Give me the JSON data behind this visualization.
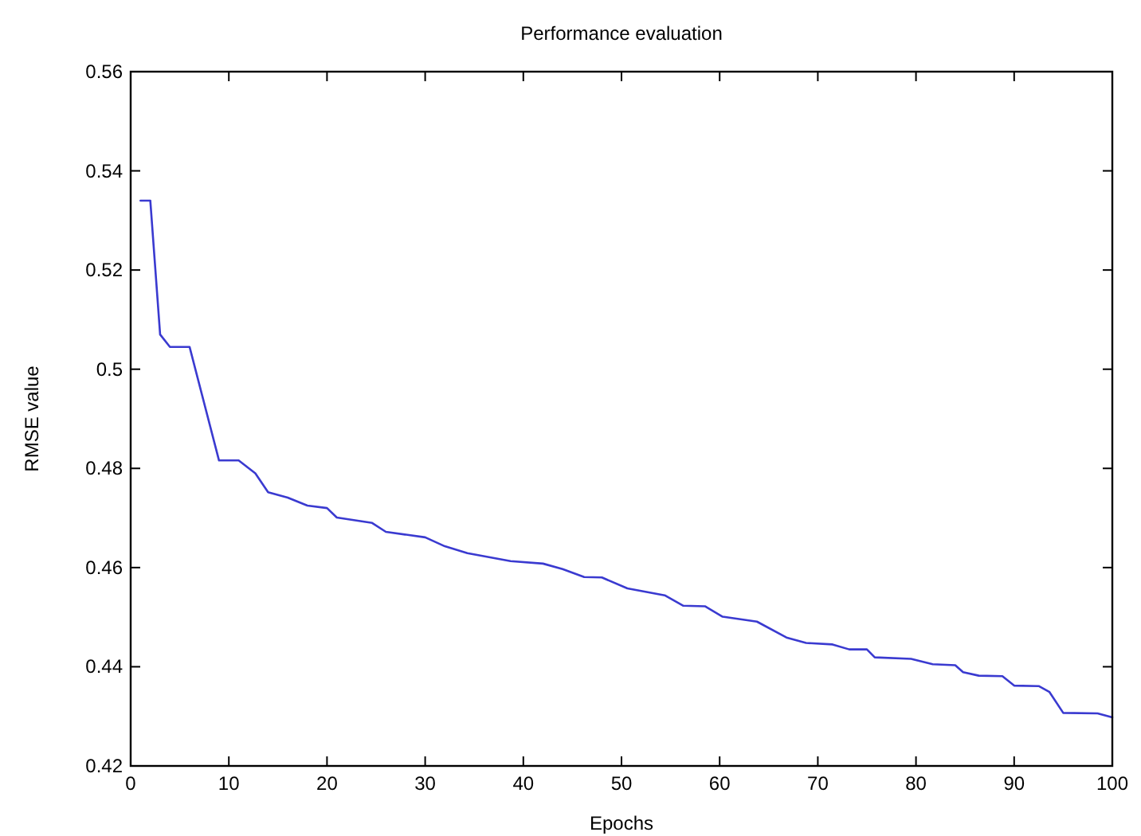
{
  "chart_data": {
    "type": "line",
    "title": "Performance evaluation",
    "xlabel": "Epochs",
    "ylabel": "RMSE value",
    "xlim": [
      0,
      100
    ],
    "xticks": [
      0,
      10,
      20,
      30,
      40,
      50,
      60,
      70,
      80,
      90,
      100
    ],
    "ylim": [
      0.42,
      0.56
    ],
    "yticks": [
      0.42,
      0.44,
      0.46,
      0.48,
      0.5,
      0.52,
      0.54,
      0.56
    ],
    "grid": false,
    "marker": "none",
    "line_style": "solid",
    "series": [
      {
        "color": "#3a3ad0",
        "x": [
          1,
          2,
          3,
          4,
          6,
          9,
          11,
          12.7,
          14,
          16,
          18,
          20,
          21,
          24.6,
          26,
          30,
          32,
          34.3,
          38.7,
          42,
          44,
          46.2,
          48,
          50.6,
          54.4,
          56.3,
          58.5,
          60.3,
          63.8,
          66.8,
          68.8,
          71.5,
          73.2,
          75,
          75.8,
          79.5,
          81.7,
          84,
          84.8,
          86.4,
          88.8,
          90,
          92.5,
          93.6,
          95,
          98.5,
          100
        ],
        "values": [
          0.534,
          0.534,
          0.507,
          0.5045,
          0.5045,
          0.4816,
          0.4816,
          0.479,
          0.4752,
          0.4741,
          0.4725,
          0.472,
          0.4701,
          0.469,
          0.4672,
          0.4661,
          0.4643,
          0.4629,
          0.4613,
          0.4608,
          0.4597,
          0.4581,
          0.458,
          0.4558,
          0.4544,
          0.4523,
          0.4522,
          0.4501,
          0.4491,
          0.4459,
          0.4448,
          0.4445,
          0.4435,
          0.4435,
          0.4419,
          0.4416,
          0.4405,
          0.4403,
          0.4389,
          0.4382,
          0.4381,
          0.4362,
          0.4361,
          0.4349,
          0.4307,
          0.4306,
          0.4298
        ]
      }
    ]
  }
}
